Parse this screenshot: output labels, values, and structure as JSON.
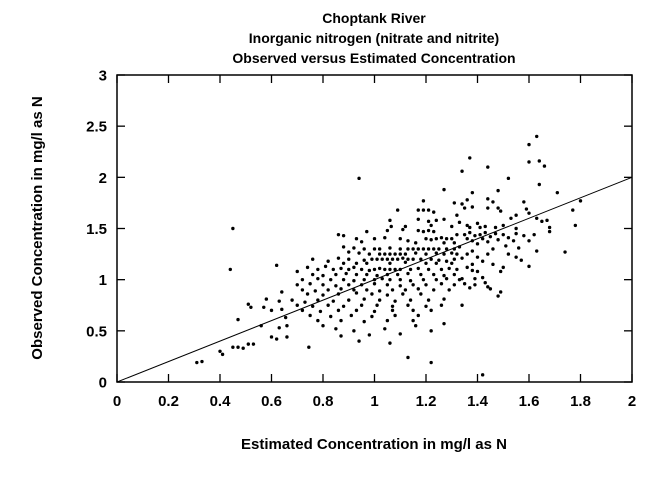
{
  "chart_data": {
    "type": "scatter",
    "title_lines": [
      "Choptank River",
      "Inorganic nitrogen (nitrate and nitrite)",
      "Observed versus Estimated Concentration"
    ],
    "xlabel": "Estimated Concentration in mg/l as N",
    "ylabel": "Observed Concentration in mg/l as N",
    "xlim": [
      0,
      2
    ],
    "ylim": [
      0,
      3
    ],
    "xticks": [
      "0",
      "0.2",
      "0.4",
      "0.6",
      "0.8",
      "1",
      "1.2",
      "1.4",
      "1.6",
      "1.8",
      "2"
    ],
    "yticks": [
      "0",
      "0.5",
      "1",
      "1.5",
      "2",
      "2.5",
      "3"
    ],
    "grid": false,
    "legend": "none",
    "identity_line": {
      "x": [
        0,
        2
      ],
      "y": [
        0,
        2
      ]
    },
    "marker": {
      "shape": "circle",
      "color": "#000000",
      "radius_px": 1.7
    },
    "points": [
      [
        0.31,
        0.19
      ],
      [
        0.33,
        0.2
      ],
      [
        0.4,
        0.3
      ],
      [
        0.41,
        0.27
      ],
      [
        0.45,
        1.5
      ],
      [
        0.44,
        1.1
      ],
      [
        0.45,
        0.34
      ],
      [
        0.47,
        0.61
      ],
      [
        0.47,
        0.34
      ],
      [
        0.49,
        0.33
      ],
      [
        0.51,
        0.76
      ],
      [
        0.51,
        0.37
      ],
      [
        0.52,
        0.73
      ],
      [
        0.53,
        0.37
      ],
      [
        0.56,
        0.55
      ],
      [
        0.57,
        0.73
      ],
      [
        0.58,
        0.81
      ],
      [
        0.6,
        0.7
      ],
      [
        0.6,
        0.44
      ],
      [
        0.62,
        1.14
      ],
      [
        0.62,
        0.42
      ],
      [
        0.63,
        0.79
      ],
      [
        0.63,
        0.53
      ],
      [
        0.64,
        0.88
      ],
      [
        0.64,
        0.71
      ],
      [
        0.655,
        0.63
      ],
      [
        0.66,
        0.55
      ],
      [
        0.66,
        0.44
      ],
      [
        0.94,
        1.99
      ],
      [
        1.27,
        1.88
      ],
      [
        1.19,
        1.77
      ],
      [
        1.09,
        1.68
      ],
      [
        1.17,
        1.68
      ],
      [
        1.19,
        1.68
      ],
      [
        1.21,
        1.68
      ],
      [
        1.31,
        1.75
      ],
      [
        1.23,
        1.66
      ],
      [
        1.06,
        1.58
      ],
      [
        1.17,
        1.59
      ],
      [
        1.21,
        1.57
      ],
      [
        1.24,
        1.58
      ],
      [
        1.27,
        1.59
      ],
      [
        1.32,
        1.63
      ],
      [
        1.33,
        1.56
      ],
      [
        1.065,
        1.52
      ],
      [
        1.12,
        1.52
      ],
      [
        1.22,
        1.53
      ],
      [
        1.3,
        1.52
      ],
      [
        1.63,
        2.4
      ],
      [
        1.6,
        2.32
      ],
      [
        1.37,
        2.19
      ],
      [
        1.64,
        2.16
      ],
      [
        1.6,
        2.15
      ],
      [
        1.66,
        2.11
      ],
      [
        1.44,
        2.1
      ],
      [
        1.34,
        2.06
      ],
      [
        1.52,
        1.99
      ],
      [
        1.64,
        1.93
      ],
      [
        1.38,
        1.85
      ],
      [
        1.36,
        1.78
      ],
      [
        1.48,
        1.87
      ],
      [
        1.71,
        1.85
      ],
      [
        1.44,
        1.79
      ],
      [
        1.46,
        1.76
      ],
      [
        1.34,
        1.74
      ],
      [
        1.35,
        1.7
      ],
      [
        1.38,
        1.71
      ],
      [
        1.44,
        1.7
      ],
      [
        1.48,
        1.7
      ],
      [
        1.49,
        1.67
      ],
      [
        1.58,
        1.76
      ],
      [
        1.59,
        1.69
      ],
      [
        1.6,
        1.65
      ],
      [
        1.8,
        1.77
      ],
      [
        1.77,
        1.68
      ],
      [
        1.63,
        1.6
      ],
      [
        1.65,
        1.57
      ],
      [
        1.67,
        1.58
      ],
      [
        1.78,
        1.53
      ],
      [
        1.36,
        1.53
      ],
      [
        1.37,
        1.51
      ],
      [
        1.4,
        1.55
      ],
      [
        1.41,
        1.51
      ],
      [
        1.43,
        1.52
      ],
      [
        1.47,
        1.51
      ],
      [
        1.5,
        1.53
      ],
      [
        1.55,
        1.5
      ],
      [
        1.68,
        1.51
      ],
      [
        1.53,
        1.6
      ],
      [
        1.55,
        1.63
      ],
      [
        1.68,
        1.47
      ],
      [
        1.63,
        1.28
      ],
      [
        1.74,
        1.27
      ],
      [
        1.57,
        1.19
      ],
      [
        1.6,
        1.13
      ],
      [
        1.49,
        1.08
      ],
      [
        1.38,
        1.09
      ],
      [
        1.39,
        1.01
      ],
      [
        1.43,
        0.97
      ],
      [
        1.44,
        0.93
      ],
      [
        1.45,
        0.91
      ],
      [
        1.48,
        0.84
      ],
      [
        1.49,
        0.88
      ],
      [
        1.34,
        0.75
      ],
      [
        1.34,
        1.21
      ],
      [
        1.34,
        1.01
      ],
      [
        1.42,
        0.07
      ],
      [
        1.35,
        1.44
      ],
      [
        1.36,
        1.4
      ],
      [
        1.37,
        1.46
      ],
      [
        1.38,
        1.38
      ],
      [
        1.39,
        1.43
      ],
      [
        1.4,
        1.35
      ],
      [
        1.41,
        1.44
      ],
      [
        1.42,
        1.4
      ],
      [
        1.43,
        1.46
      ],
      [
        1.44,
        1.37
      ],
      [
        1.45,
        1.42
      ],
      [
        1.46,
        1.3
      ],
      [
        1.47,
        1.45
      ],
      [
        1.48,
        1.39
      ],
      [
        1.5,
        1.44
      ],
      [
        1.51,
        1.33
      ],
      [
        1.52,
        1.41
      ],
      [
        1.54,
        1.38
      ],
      [
        1.55,
        1.45
      ],
      [
        1.56,
        1.31
      ],
      [
        1.58,
        1.43
      ],
      [
        1.6,
        1.38
      ],
      [
        1.62,
        1.44
      ],
      [
        1.52,
        1.25
      ],
      [
        1.55,
        1.22
      ],
      [
        1.44,
        1.25
      ],
      [
        1.4,
        1.22
      ],
      [
        1.38,
        1.28
      ],
      [
        1.36,
        1.25
      ],
      [
        1.42,
        1.18
      ],
      [
        1.46,
        1.15
      ],
      [
        1.5,
        1.12
      ],
      [
        1.36,
        1.12
      ],
      [
        1.38,
        1.15
      ],
      [
        1.4,
        1.08
      ],
      [
        1.42,
        1.02
      ],
      [
        1.35,
        0.96
      ],
      [
        1.37,
        0.92
      ],
      [
        1.39,
        0.95
      ],
      [
        0.86,
        1.44
      ],
      [
        0.88,
        1.43
      ],
      [
        0.93,
        1.4
      ],
      [
        0.97,
        1.47
      ],
      [
        1.05,
        1.48
      ],
      [
        1.11,
        1.49
      ],
      [
        1.17,
        1.48
      ],
      [
        1.19,
        1.47
      ],
      [
        1.21,
        1.48
      ],
      [
        1.23,
        1.47
      ],
      [
        1.0,
        1.4
      ],
      [
        1.04,
        1.41
      ],
      [
        1.1,
        1.4
      ],
      [
        1.2,
        1.4
      ],
      [
        1.22,
        1.39
      ],
      [
        1.24,
        1.4
      ],
      [
        1.26,
        1.41
      ],
      [
        1.28,
        1.4
      ],
      [
        1.3,
        1.4
      ],
      [
        1.32,
        1.44
      ],
      [
        1.13,
        1.38
      ],
      [
        1.16,
        1.36
      ],
      [
        1.27,
        1.36
      ],
      [
        1.31,
        1.36
      ],
      [
        0.95,
        1.37
      ],
      [
        0.88,
        1.32
      ],
      [
        0.92,
        1.31
      ],
      [
        0.96,
        1.3
      ],
      [
        1.0,
        1.3
      ],
      [
        1.02,
        1.3
      ],
      [
        1.06,
        1.31
      ],
      [
        1.1,
        1.3
      ],
      [
        1.13,
        1.3
      ],
      [
        1.15,
        1.3
      ],
      [
        1.17,
        1.3
      ],
      [
        1.19,
        1.3
      ],
      [
        1.21,
        1.3
      ],
      [
        1.23,
        1.3
      ],
      [
        1.25,
        1.3
      ],
      [
        1.28,
        1.3
      ],
      [
        1.31,
        1.3
      ],
      [
        1.33,
        1.32
      ],
      [
        0.9,
        1.27
      ],
      [
        0.94,
        1.26
      ],
      [
        0.98,
        1.25
      ],
      [
        1.02,
        1.25
      ],
      [
        1.04,
        1.25
      ],
      [
        1.06,
        1.25
      ],
      [
        1.08,
        1.25
      ],
      [
        1.1,
        1.25
      ],
      [
        1.12,
        1.25
      ],
      [
        1.16,
        1.26
      ],
      [
        1.2,
        1.25
      ],
      [
        1.24,
        1.26
      ],
      [
        1.27,
        1.25
      ],
      [
        1.3,
        1.26
      ],
      [
        1.32,
        1.25
      ],
      [
        0.76,
        1.2
      ],
      [
        0.82,
        1.18
      ],
      [
        0.86,
        1.21
      ],
      [
        0.9,
        1.2
      ],
      [
        0.93,
        1.16
      ],
      [
        0.96,
        1.19
      ],
      [
        0.99,
        1.2
      ],
      [
        1.01,
        1.2
      ],
      [
        1.03,
        1.2
      ],
      [
        1.05,
        1.2
      ],
      [
        1.07,
        1.2
      ],
      [
        1.09,
        1.2
      ],
      [
        1.11,
        1.21
      ],
      [
        1.13,
        1.2
      ],
      [
        1.15,
        1.2
      ],
      [
        1.18,
        1.2
      ],
      [
        1.22,
        1.2
      ],
      [
        1.25,
        1.19
      ],
      [
        1.28,
        1.18
      ],
      [
        1.31,
        1.2
      ],
      [
        0.88,
        1.16
      ],
      [
        0.97,
        1.16
      ],
      [
        1.06,
        1.16
      ],
      [
        1.12,
        1.17
      ],
      [
        1.2,
        1.16
      ],
      [
        1.24,
        1.16
      ],
      [
        1.3,
        1.16
      ],
      [
        0.7,
        1.08
      ],
      [
        0.74,
        1.12
      ],
      [
        0.78,
        1.1
      ],
      [
        0.81,
        1.13
      ],
      [
        0.84,
        1.1
      ],
      [
        0.87,
        1.11
      ],
      [
        0.9,
        1.1
      ],
      [
        0.92,
        1.12
      ],
      [
        0.95,
        1.1
      ],
      [
        0.98,
        1.09
      ],
      [
        1.0,
        1.1
      ],
      [
        1.02,
        1.11
      ],
      [
        1.04,
        1.1
      ],
      [
        1.06,
        1.1
      ],
      [
        1.08,
        1.1
      ],
      [
        1.1,
        1.1
      ],
      [
        1.14,
        1.1
      ],
      [
        1.17,
        1.11
      ],
      [
        1.21,
        1.1
      ],
      [
        1.26,
        1.1
      ],
      [
        1.29,
        1.11
      ],
      [
        1.32,
        1.1
      ],
      [
        0.76,
        1.05
      ],
      [
        0.8,
        1.04
      ],
      [
        0.85,
        1.05
      ],
      [
        0.89,
        1.06
      ],
      [
        0.93,
        1.05
      ],
      [
        0.97,
        1.05
      ],
      [
        1.01,
        1.04
      ],
      [
        1.05,
        1.05
      ],
      [
        1.09,
        1.05
      ],
      [
        1.13,
        1.06
      ],
      [
        1.18,
        1.05
      ],
      [
        1.23,
        1.05
      ],
      [
        1.27,
        1.04
      ],
      [
        1.31,
        1.05
      ],
      [
        0.72,
        1.0
      ],
      [
        0.78,
        1.01
      ],
      [
        0.83,
        1.0
      ],
      [
        0.88,
        1.0
      ],
      [
        0.92,
        0.99
      ],
      [
        0.96,
        1.0
      ],
      [
        1.0,
        1.0
      ],
      [
        1.03,
        1.01
      ],
      [
        1.06,
        1.0
      ],
      [
        1.1,
        1.0
      ],
      [
        1.14,
        0.99
      ],
      [
        1.19,
        1.0
      ],
      [
        1.24,
        1.0
      ],
      [
        1.28,
        1.01
      ],
      [
        1.33,
        1.0
      ],
      [
        0.7,
        0.95
      ],
      [
        0.75,
        0.96
      ],
      [
        0.8,
        0.95
      ],
      [
        0.85,
        0.94
      ],
      [
        0.9,
        0.95
      ],
      [
        0.95,
        0.95
      ],
      [
        1.0,
        0.96
      ],
      [
        1.05,
        0.95
      ],
      [
        1.1,
        0.94
      ],
      [
        1.15,
        0.95
      ],
      [
        1.2,
        0.95
      ],
      [
        1.26,
        0.96
      ],
      [
        1.31,
        0.95
      ],
      [
        0.72,
        0.9
      ],
      [
        0.77,
        0.89
      ],
      [
        0.82,
        0.9
      ],
      [
        0.87,
        0.91
      ],
      [
        0.92,
        0.9
      ],
      [
        0.97,
        0.9
      ],
      [
        1.02,
        0.89
      ],
      [
        1.07,
        0.9
      ],
      [
        1.12,
        0.9
      ],
      [
        1.17,
        0.91
      ],
      [
        1.23,
        0.9
      ],
      [
        1.29,
        0.9
      ],
      [
        0.74,
        0.86
      ],
      [
        0.8,
        0.85
      ],
      [
        0.86,
        0.86
      ],
      [
        0.93,
        0.87
      ],
      [
        0.99,
        0.86
      ],
      [
        1.05,
        0.85
      ],
      [
        1.11,
        0.86
      ],
      [
        1.18,
        0.86
      ],
      [
        0.68,
        0.8
      ],
      [
        0.73,
        0.78
      ],
      [
        0.78,
        0.8
      ],
      [
        0.84,
        0.79
      ],
      [
        0.9,
        0.8
      ],
      [
        0.96,
        0.81
      ],
      [
        1.02,
        0.8
      ],
      [
        1.08,
        0.79
      ],
      [
        1.14,
        0.8
      ],
      [
        1.21,
        0.8
      ],
      [
        1.27,
        0.81
      ],
      [
        0.7,
        0.75
      ],
      [
        0.76,
        0.74
      ],
      [
        0.82,
        0.75
      ],
      [
        0.88,
        0.74
      ],
      [
        0.95,
        0.75
      ],
      [
        1.01,
        0.75
      ],
      [
        1.07,
        0.74
      ],
      [
        1.13,
        0.75
      ],
      [
        1.2,
        0.74
      ],
      [
        1.26,
        0.75
      ],
      [
        0.72,
        0.7
      ],
      [
        0.79,
        0.69
      ],
      [
        0.86,
        0.7
      ],
      [
        0.93,
        0.7
      ],
      [
        1.0,
        0.69
      ],
      [
        1.07,
        0.7
      ],
      [
        1.15,
        0.7
      ],
      [
        1.22,
        0.7
      ],
      [
        0.75,
        0.65
      ],
      [
        0.83,
        0.64
      ],
      [
        0.91,
        0.65
      ],
      [
        0.99,
        0.64
      ],
      [
        1.08,
        0.65
      ],
      [
        1.17,
        0.65
      ],
      [
        0.78,
        0.6
      ],
      [
        0.87,
        0.6
      ],
      [
        0.96,
        0.59
      ],
      [
        1.05,
        0.6
      ],
      [
        1.15,
        0.6
      ],
      [
        0.745,
        0.34
      ],
      [
        0.87,
        0.45
      ],
      [
        0.92,
        0.5
      ],
      [
        0.98,
        0.46
      ],
      [
        1.04,
        0.52
      ],
      [
        1.1,
        0.47
      ],
      [
        1.16,
        0.55
      ],
      [
        1.22,
        0.5
      ],
      [
        0.8,
        0.55
      ],
      [
        0.85,
        0.52
      ],
      [
        1.27,
        0.57
      ],
      [
        0.94,
        0.4
      ],
      [
        1.06,
        0.38
      ],
      [
        1.13,
        0.24
      ],
      [
        1.22,
        0.19
      ]
    ]
  }
}
